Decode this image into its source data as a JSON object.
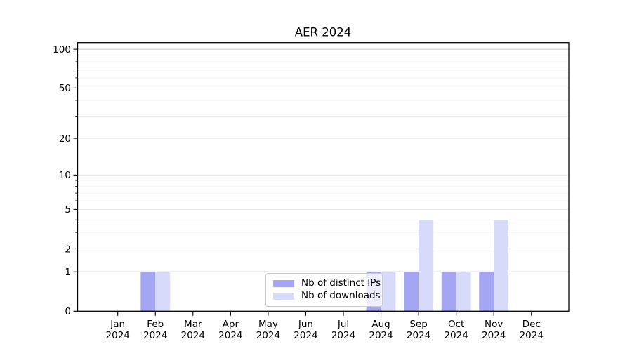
{
  "chart_data": {
    "type": "bar",
    "title": "AER 2024",
    "months": [
      "Jan",
      "Feb",
      "Mar",
      "Apr",
      "May",
      "Jun",
      "Jul",
      "Aug",
      "Sep",
      "Oct",
      "Nov",
      "Dec"
    ],
    "year": "2024",
    "series": [
      {
        "name": "Nb of distinct IPs",
        "color": "#a4a6f4",
        "values": [
          0,
          1,
          0,
          0,
          0,
          0,
          0,
          1,
          1,
          1,
          1,
          0
        ]
      },
      {
        "name": "Nb of downloads",
        "color": "#d8dafa",
        "values": [
          0,
          1,
          0,
          0,
          0,
          0,
          0,
          1,
          4,
          1,
          4,
          0
        ]
      }
    ],
    "y_axis": {
      "scale": "log(1+x)",
      "major_ticks": [
        0,
        1,
        2,
        5,
        10,
        20,
        50,
        100
      ],
      "minor_ticks": [
        3,
        4,
        6,
        7,
        8,
        9,
        30,
        40,
        60,
        70,
        80,
        90
      ],
      "ylim": [
        0,
        110
      ]
    },
    "grid": {
      "emphasis_color": "#c6c6c9",
      "major_color": "#e7e7e9",
      "minor_color": "#f1f1f3",
      "emphasis_values": [
        1,
        100
      ]
    },
    "legend": {
      "entries": [
        "Nb of distinct IPs",
        "Nb of downloads"
      ]
    },
    "axis_color": "#000000"
  }
}
